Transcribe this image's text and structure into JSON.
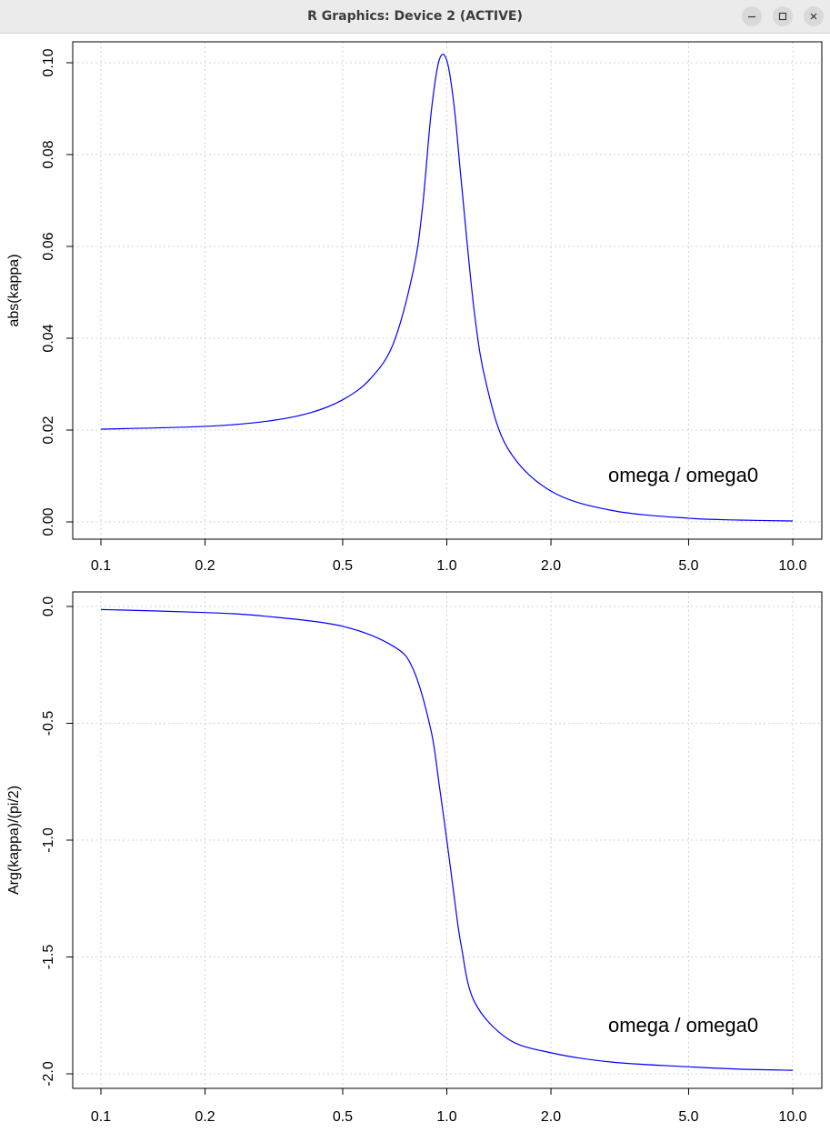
{
  "window": {
    "title": "R Graphics: Device 2 (ACTIVE)",
    "buttons": [
      "minimize",
      "maximize",
      "close"
    ]
  },
  "colors": {
    "line": "#0000ff",
    "grid": "#d3d3d3",
    "titlebar": "#ebebeb"
  },
  "chart_data": [
    {
      "type": "line",
      "title": "",
      "xlabel": "",
      "ylabel": "abs(kappa)",
      "annotation": "omega / omega0",
      "x_scale": "log",
      "xlim": [
        0.1,
        10
      ],
      "ylim": [
        0,
        0.1
      ],
      "x_ticks": [
        0.1,
        0.2,
        0.5,
        1,
        2,
        5,
        10
      ],
      "x_tick_labels": [
        "0.1",
        "0.2",
        "0.5",
        "1.0",
        "2.0",
        "5.0",
        "10.0"
      ],
      "y_ticks": [
        0,
        0.02,
        0.04,
        0.06,
        0.08,
        0.1
      ],
      "y_tick_labels": [
        "0.00",
        "0.02",
        "0.04",
        "0.06",
        "0.08",
        "0.10"
      ],
      "grid": true,
      "series": [
        {
          "color": "#0000ff",
          "x": [
            0.1,
            0.2,
            0.3,
            0.4,
            0.5,
            0.6,
            0.7,
            0.8,
            0.85,
            0.9,
            0.95,
            1.0,
            1.05,
            1.1,
            1.2,
            1.3,
            1.5,
            2.0,
            3.0,
            5.0,
            7.0,
            10.0
          ],
          "y": [
            0.0202,
            0.0208,
            0.0219,
            0.0237,
            0.0266,
            0.0311,
            0.0388,
            0.0547,
            0.0683,
            0.0888,
            0.1005,
            0.1005,
            0.0905,
            0.0745,
            0.0459,
            0.0301,
            0.016,
            0.0067,
            0.0025,
            0.0008,
            0.0004,
            0.0002
          ]
        }
      ]
    },
    {
      "type": "line",
      "title": "",
      "xlabel": "",
      "ylabel": "Arg(kappa)/(pi/2)",
      "annotation": "omega / omega0",
      "x_scale": "log",
      "xlim": [
        0.1,
        10
      ],
      "ylim": [
        -2.0,
        0.0
      ],
      "x_ticks": [
        0.1,
        0.2,
        0.5,
        1,
        2,
        5,
        10
      ],
      "x_tick_labels": [
        "0.1",
        "0.2",
        "0.5",
        "1.0",
        "2.0",
        "5.0",
        "10.0"
      ],
      "y_ticks": [
        0.0,
        -0.5,
        -1.0,
        -1.5,
        -2.0
      ],
      "y_tick_labels": [
        "0.0",
        "-0.5",
        "-1.0",
        "-1.5",
        "-2.0"
      ],
      "grid": true,
      "series": [
        {
          "color": "#0000ff",
          "x": [
            0.1,
            0.2,
            0.3,
            0.5,
            0.7,
            0.8,
            0.9,
            0.95,
            1.0,
            1.05,
            1.1,
            1.2,
            1.5,
            2.0,
            3.0,
            5.0,
            7.0,
            10.0
          ],
          "y": [
            -0.013,
            -0.026,
            -0.042,
            -0.085,
            -0.17,
            -0.27,
            -0.53,
            -0.76,
            -1.0,
            -1.24,
            -1.45,
            -1.69,
            -1.85,
            -1.91,
            -1.95,
            -1.97,
            -1.98,
            -1.985
          ]
        }
      ]
    }
  ]
}
